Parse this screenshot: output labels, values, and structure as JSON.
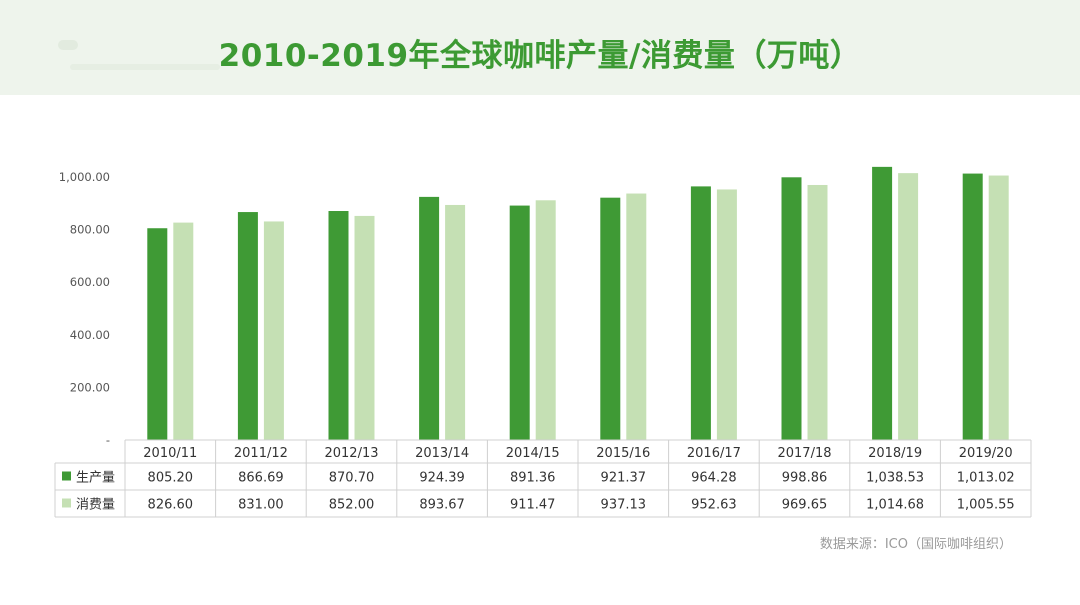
{
  "title": "2010-2019年全球咖啡产量/消费量（万吨）",
  "source": "数据来源：ICO（国际咖啡组织）",
  "colors": {
    "production": "#3f9a35",
    "consumption": "#c5e0b4",
    "title": "#3c9a33"
  },
  "chart_data": {
    "type": "bar",
    "title": "2010-2019年全球咖啡产量/消费量（万吨）",
    "categories": [
      "2010/11",
      "2011/12",
      "2012/13",
      "2013/14",
      "2014/15",
      "2015/16",
      "2016/17",
      "2017/18",
      "2018/19",
      "2019/20"
    ],
    "series": [
      {
        "name": "生产量",
        "values": [
          805.2,
          866.69,
          870.7,
          924.39,
          891.36,
          921.37,
          964.28,
          998.86,
          1038.53,
          1013.02
        ],
        "labels": [
          "805.20",
          "866.69",
          "870.70",
          "924.39",
          "891.36",
          "921.37",
          "964.28",
          "998.86",
          "1,038.53",
          "1,013.02"
        ]
      },
      {
        "name": "消费量",
        "values": [
          826.6,
          831.0,
          852.0,
          893.67,
          911.47,
          937.13,
          952.63,
          969.65,
          1014.68,
          1005.55
        ],
        "labels": [
          "826.60",
          "831.00",
          "852.00",
          "893.67",
          "911.47",
          "937.13",
          "952.63",
          "969.65",
          "1,014.68",
          "1,005.55"
        ]
      }
    ],
    "yticks": [
      "-",
      "200.00",
      "400.00",
      "600.00",
      "800.00",
      "1,000.00"
    ],
    "ylim": [
      0,
      1000
    ],
    "grid": false,
    "legend": "data-table"
  }
}
